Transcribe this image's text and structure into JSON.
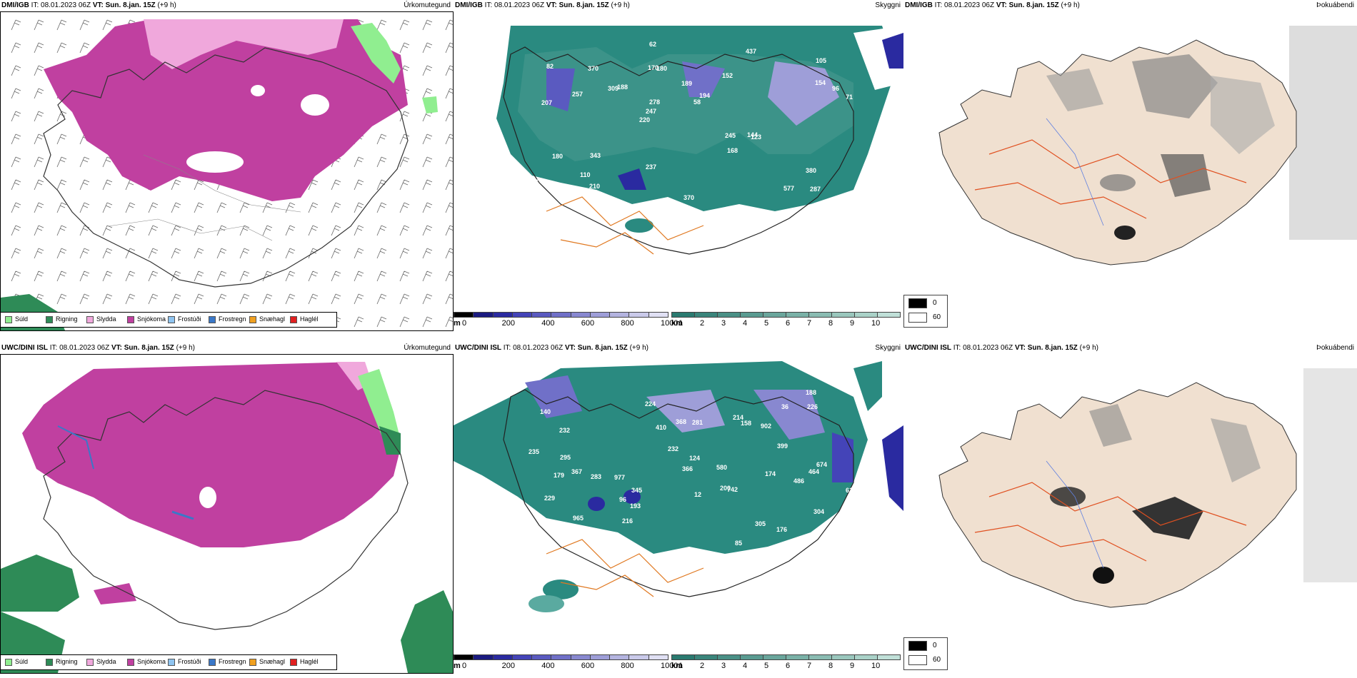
{
  "rows": [
    {
      "model": "DMI/IGB",
      "init_time": "IT: 08.01.2023 06Z",
      "valid_time": "VT: Sun. 8.jan. 15Z",
      "lead": "(+9 h)"
    },
    {
      "model": "UWC/DINI ISL",
      "init_time": "IT: 08.01.2023 06Z",
      "valid_time": "VT: Sun. 8.jan. 15Z",
      "lead": "(+9 h)"
    }
  ],
  "panels": {
    "precip_type": {
      "title": "Úrkomutegund"
    },
    "cloud": {
      "title": "Skyggni"
    },
    "fog": {
      "title": "Þokuábendi"
    }
  },
  "precip_legend": [
    {
      "label": "Súld",
      "color": "#90ee90"
    },
    {
      "label": "Rigning",
      "color": "#2e8b57"
    },
    {
      "label": "Slydda",
      "color": "#f0a8dc"
    },
    {
      "label": "Snjókoma",
      "color": "#c040a0"
    },
    {
      "label": "Frostúði",
      "color": "#8fc4f0"
    },
    {
      "label": "Frostregn",
      "color": "#3a78c8"
    },
    {
      "label": "Snæhagl",
      "color": "#f0a020"
    },
    {
      "label": "Haglél",
      "color": "#e02020"
    }
  ],
  "cloud_base_bar": {
    "unit": "m",
    "ticks": [
      "0",
      "200",
      "400",
      "600",
      "800",
      "1000"
    ],
    "colors": [
      "#000000",
      "#1a1a80",
      "#2a2aa0",
      "#4444b8",
      "#5a5ac0",
      "#7070c8",
      "#8888d0",
      "#9e9ed8",
      "#b4b4e0",
      "#cacaea",
      "#e0e0f4"
    ]
  },
  "visibility_bar": {
    "unit": "km",
    "ticks": [
      "1",
      "2",
      "3",
      "4",
      "5",
      "6",
      "7",
      "8",
      "9",
      "10"
    ],
    "colors": [
      "#2a7a70",
      "#3a857b",
      "#4a9086",
      "#5a9b91",
      "#6aa69c",
      "#7ab1a7",
      "#8abcb2",
      "#9ac7bd",
      "#aad2c8",
      "#c0e0d8"
    ]
  },
  "fog_legend": [
    {
      "label": "0",
      "color": "#000000"
    },
    {
      "label": "60",
      "color": "#ffffff"
    }
  ],
  "cloud_labels_top": [
    "287",
    "207",
    "105",
    "220",
    "152",
    "113",
    "170",
    "189",
    "180",
    "188",
    "176",
    "110",
    "180",
    "194",
    "123",
    "82",
    "62",
    "71",
    "245",
    "154",
    "247",
    "237",
    "278",
    "370",
    "437",
    "343",
    "577",
    "380",
    "144",
    "370",
    "309",
    "257",
    "168",
    "210",
    "96",
    "58"
  ],
  "cloud_labels_bottom": [
    "384",
    "367",
    "200",
    "140",
    "304",
    "232",
    "965",
    "977",
    "902",
    "368",
    "158",
    "176",
    "193",
    "224",
    "580",
    "229",
    "174",
    "124",
    "235",
    "257",
    "188",
    "281",
    "399",
    "613",
    "674",
    "295",
    "283",
    "366",
    "232",
    "226",
    "742",
    "179",
    "96",
    "214",
    "410",
    "486",
    "464",
    "305",
    "36",
    "85",
    "345",
    "12",
    "216"
  ]
}
